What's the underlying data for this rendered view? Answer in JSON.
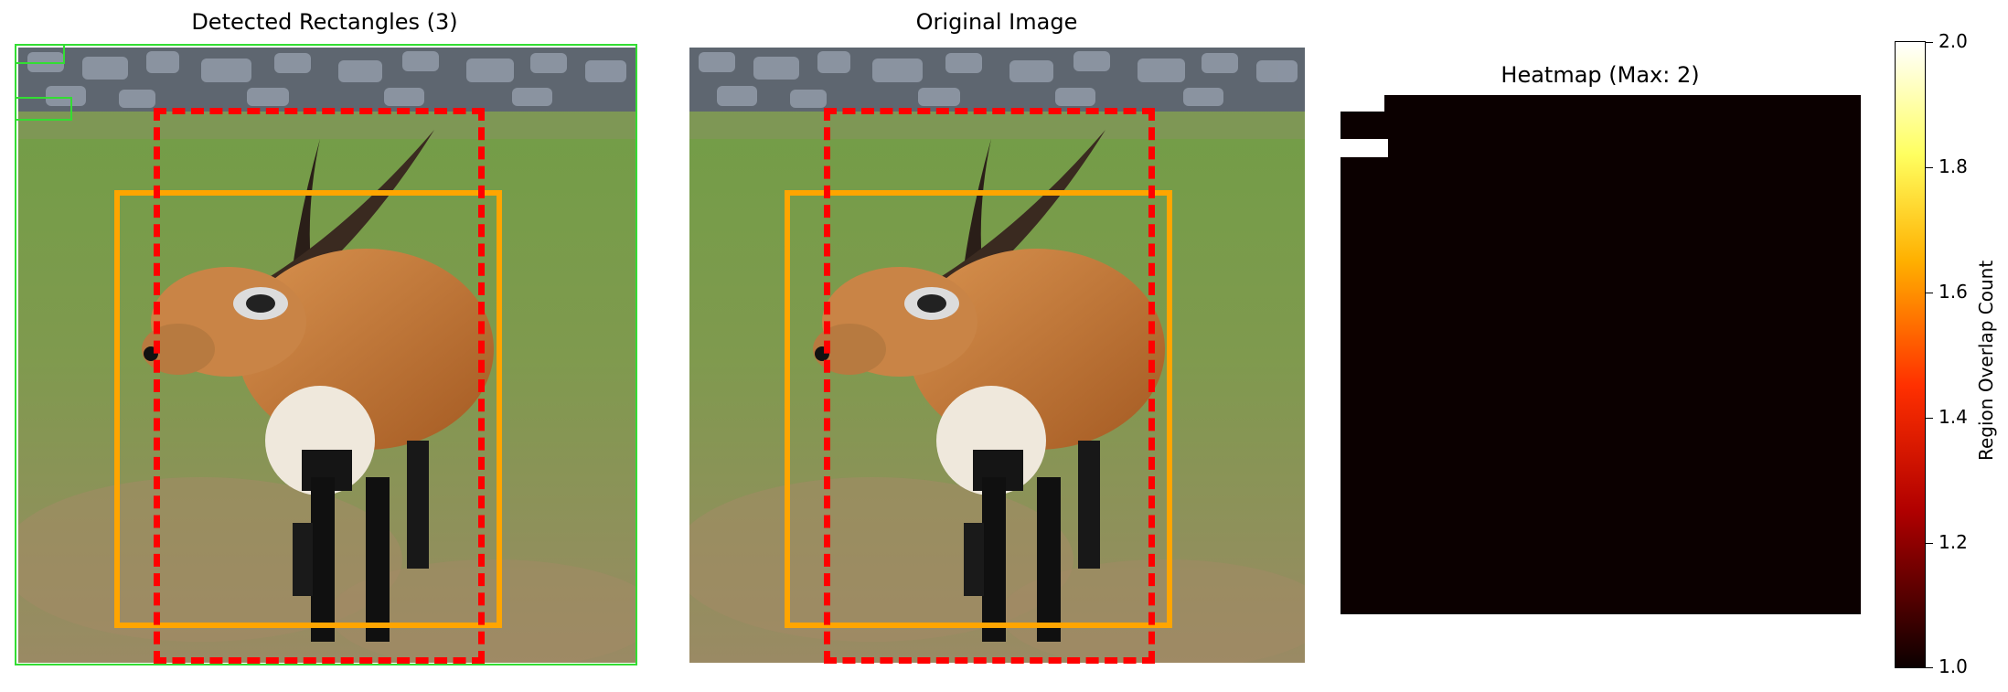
{
  "panels": {
    "detected": {
      "title": "Detected Rectangles (3)"
    },
    "original": {
      "title": "Original Image"
    },
    "heatmap": {
      "title": "Heatmap (Max: 2)"
    }
  },
  "colorbar": {
    "label": "Region Overlap Count",
    "ticks": [
      "2.0",
      "1.8",
      "1.6",
      "1.4",
      "1.2",
      "1.0"
    ],
    "colors": [
      "#ffffff",
      "#ffff40",
      "#ffa000",
      "#ff2000",
      "#a00000",
      "#0b0000"
    ]
  },
  "box_colors": {
    "green": "#33dd33",
    "orange": "#ffa500",
    "red": "#ff0000"
  }
}
